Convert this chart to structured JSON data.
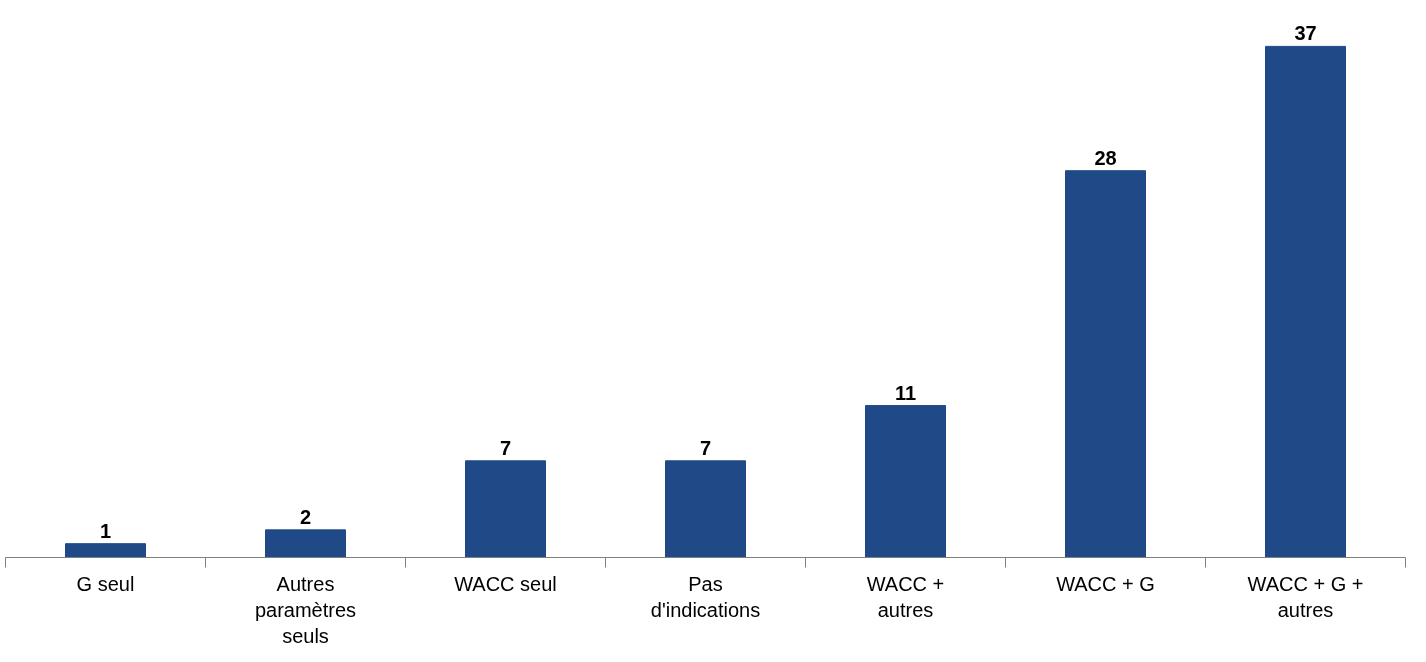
{
  "chart_data": {
    "type": "bar",
    "categories": [
      "G seul",
      "Autres paramètres seuls",
      "WACC seul",
      "Pas d'indications",
      "WACC + autres",
      "WACC + G",
      "WACC + G + autres"
    ],
    "values": [
      1,
      2,
      7,
      7,
      11,
      28,
      37
    ],
    "color": "#1f4a87",
    "data_labels": true
  }
}
